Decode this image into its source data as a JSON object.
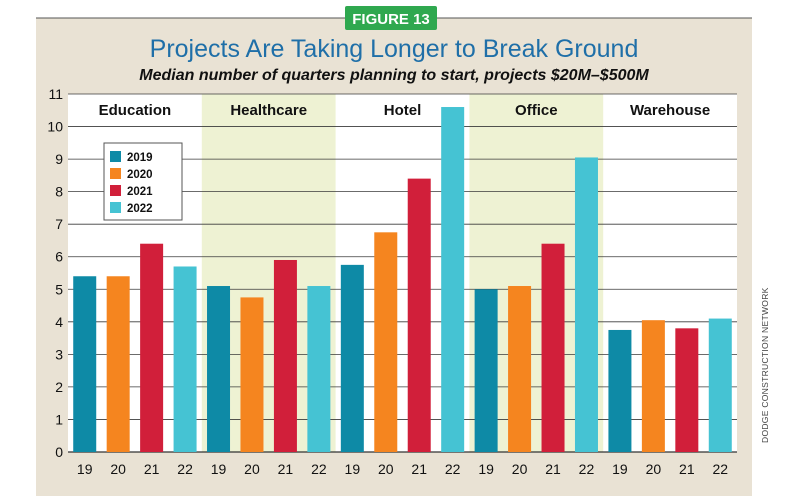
{
  "figure_badge": "FIGURE 13",
  "credit": "DODGE CONSTRUCTION NETWORK",
  "colors": {
    "background": "#e9e2d4",
    "band": "#eef2d3",
    "badge": "#2fa84f",
    "title": "#1f6fa8",
    "series": [
      "#0e8aa6",
      "#f5851f",
      "#d11f3a",
      "#45c3d3"
    ]
  },
  "chart_data": {
    "type": "bar",
    "title": "Projects Are Taking Longer to Break Ground",
    "subtitle": "Median number of quarters planning to start, projects $20M–$500M",
    "groups": [
      "Education",
      "Healthcare",
      "Hotel",
      "Office",
      "Warehouse"
    ],
    "shaded_groups": [
      "Healthcare",
      "Office"
    ],
    "x_tick_labels": [
      "19",
      "20",
      "21",
      "22"
    ],
    "series": [
      {
        "name": "2019",
        "values": [
          5.4,
          5.1,
          5.75,
          5.0,
          3.75
        ]
      },
      {
        "name": "2020",
        "values": [
          5.4,
          4.75,
          6.75,
          5.1,
          4.05
        ]
      },
      {
        "name": "2021",
        "values": [
          6.4,
          5.9,
          8.4,
          6.4,
          3.8
        ]
      },
      {
        "name": "2022",
        "values": [
          5.7,
          5.1,
          10.6,
          9.05,
          4.1
        ]
      }
    ],
    "ylim": [
      0,
      11
    ],
    "y_ticks": [
      0,
      1,
      2,
      3,
      4,
      5,
      6,
      7,
      8,
      9,
      10,
      11
    ],
    "grid": true,
    "legend_position": "top-left"
  }
}
